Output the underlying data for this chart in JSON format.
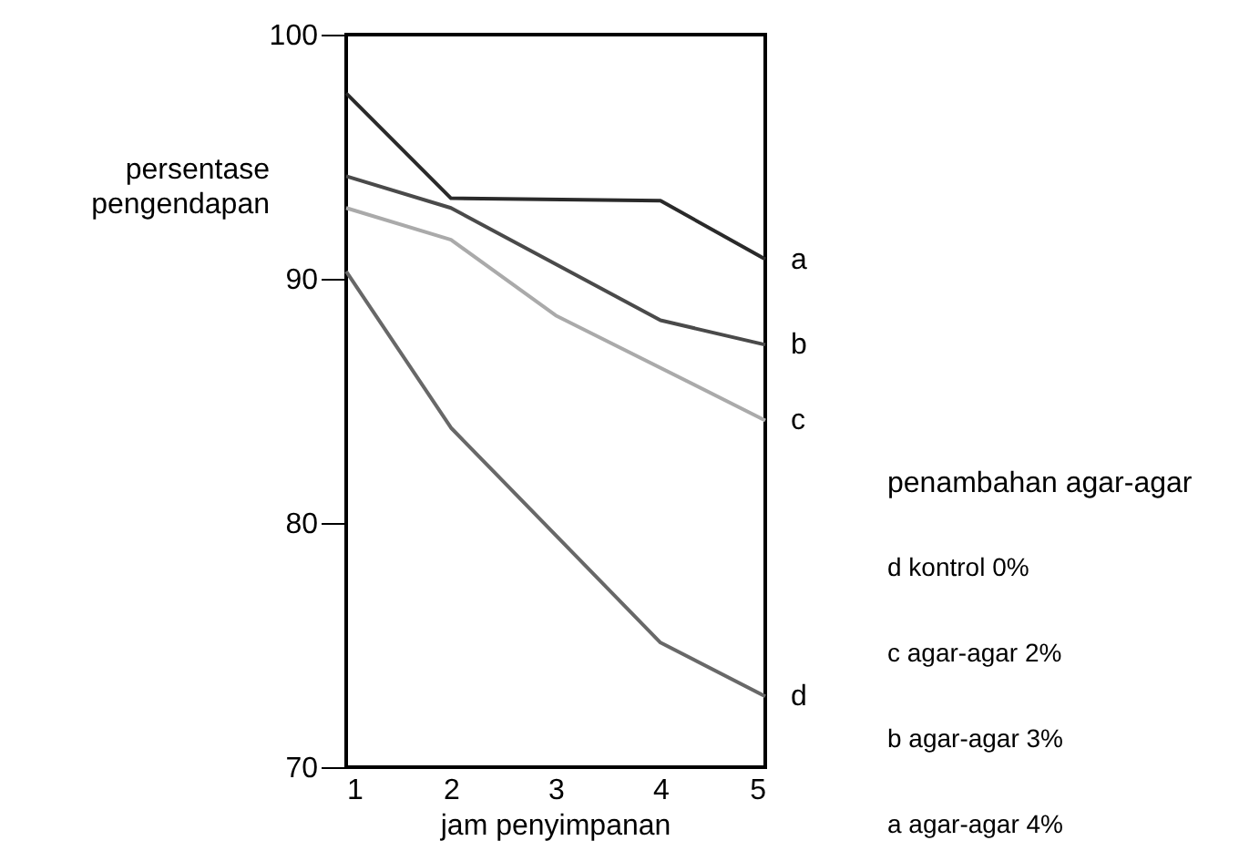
{
  "chart_data": {
    "type": "line",
    "xlabel": "jam penyimpanan",
    "ylabel": "persentase pengendapan",
    "legend_title": "penambahan agar-agar",
    "x": [
      1,
      2,
      3,
      4,
      5
    ],
    "series": [
      {
        "name": "a",
        "color": "#2a2a2a",
        "values": [
          97.6,
          93.3,
          null,
          93.2,
          90.8
        ],
        "x": [
          1,
          2,
          3,
          4,
          5
        ]
      },
      {
        "name": "b",
        "color": "#4a4a4a",
        "values": [
          94.2,
          92.9,
          null,
          88.3,
          87.3
        ]
      },
      {
        "name": "c",
        "color": "#aaaaaa",
        "values": [
          92.9,
          91.6,
          88.5,
          null,
          84.2
        ]
      },
      {
        "name": "d",
        "color": "#686868",
        "values": [
          90.3,
          83.9,
          null,
          75.1,
          72.9
        ]
      }
    ],
    "annotations": [
      "d   kontrol 0%",
      "c   agar-agar 2%",
      "b   agar-agar 3%",
      "a   agar-agar 4%"
    ],
    "xlim": [
      1,
      5
    ],
    "xticks": [
      1,
      2,
      3,
      4,
      5
    ],
    "ylim": [
      70,
      100
    ],
    "yticks": [
      70,
      80,
      90,
      100
    ],
    "grid": false,
    "marker": "none",
    "line_style": "solid"
  }
}
